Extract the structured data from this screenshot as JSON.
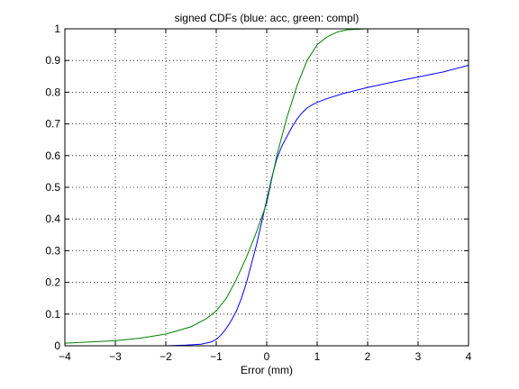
{
  "chart_data": {
    "type": "line",
    "title": "signed CDFs (blue: acc, green: compl)",
    "xlabel": "Error (mm)",
    "ylabel": "",
    "xlim": [
      -4,
      4
    ],
    "ylim": [
      0,
      1
    ],
    "xticks": [
      -4,
      -3,
      -2,
      -1,
      0,
      1,
      2,
      3,
      4
    ],
    "xtick_labels": [
      "−4",
      "−3",
      "−2",
      "−1",
      "0",
      "1",
      "2",
      "3",
      "4"
    ],
    "yticks": [
      0,
      0.1,
      0.2,
      0.3,
      0.4,
      0.5,
      0.6,
      0.7,
      0.8,
      0.9,
      1
    ],
    "ytick_labels": [
      "0",
      "0.1",
      "0.2",
      "0.3",
      "0.4",
      "0.5",
      "0.6",
      "0.7",
      "0.8",
      "0.9",
      "1"
    ],
    "grid": true,
    "series": [
      {
        "color": "#0000ff",
        "x": [
          -4.0,
          -3.0,
          -2.0,
          -1.6,
          -1.3,
          -1.1,
          -1.0,
          -0.9,
          -0.8,
          -0.7,
          -0.6,
          -0.5,
          -0.4,
          -0.3,
          -0.2,
          -0.1,
          0.0,
          0.1,
          0.2,
          0.3,
          0.4,
          0.5,
          0.6,
          0.7,
          0.8,
          0.9,
          1.0,
          1.2,
          1.5,
          2.0,
          2.5,
          3.0,
          3.5,
          4.0
        ],
        "y": [
          0.0,
          0.0,
          0.0,
          0.002,
          0.005,
          0.012,
          0.02,
          0.035,
          0.055,
          0.08,
          0.11,
          0.15,
          0.2,
          0.26,
          0.32,
          0.39,
          0.46,
          0.53,
          0.59,
          0.63,
          0.66,
          0.69,
          0.715,
          0.735,
          0.75,
          0.76,
          0.768,
          0.78,
          0.795,
          0.815,
          0.832,
          0.848,
          0.864,
          0.885
        ]
      },
      {
        "color": "#008000",
        "x": [
          -4.0,
          -3.5,
          -3.0,
          -2.5,
          -2.0,
          -1.5,
          -1.2,
          -1.0,
          -0.8,
          -0.6,
          -0.4,
          -0.2,
          0.0,
          0.2,
          0.4,
          0.6,
          0.8,
          1.0,
          1.2,
          1.4,
          1.6,
          2.0,
          3.0
        ],
        "y": [
          0.008,
          0.012,
          0.016,
          0.024,
          0.037,
          0.06,
          0.085,
          0.11,
          0.15,
          0.21,
          0.28,
          0.36,
          0.45,
          0.6,
          0.72,
          0.82,
          0.9,
          0.95,
          0.975,
          0.99,
          0.997,
          1.0,
          1.0
        ]
      }
    ]
  }
}
